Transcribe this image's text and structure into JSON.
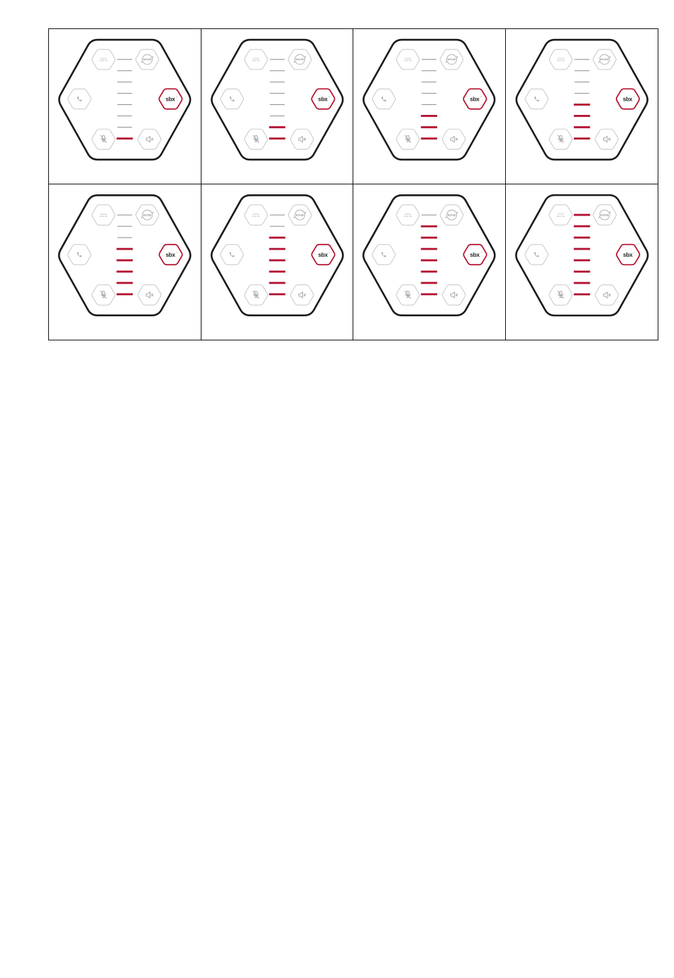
{
  "page": {
    "background": "#ffffff",
    "description": "Grid of eight speakerphone illustrations showing volume level steps 1 to 8"
  },
  "board": {
    "rows": 2,
    "cols": 4,
    "border_color": "#151515"
  },
  "device": {
    "logo_text": "sbx",
    "logo_trademark": "™",
    "noise_button_label": "NOISE",
    "voice_button_line1": "VOICE",
    "voice_button_line2": "PICK UP",
    "volume_bars_total": 8,
    "icons": [
      "voice-pickup-button",
      "noise-cancel-button",
      "phone-icon",
      "sbx-logo",
      "mic-mute-icon",
      "speaker-mute-icon"
    ],
    "colors": {
      "accent_red": "#b3102f",
      "outline_dark": "#1c1c1e",
      "button_outline": "#c7c7c7",
      "icon_gray": "#a3a3a3",
      "bar_inactive": "#969696",
      "logo_text_color": "#262626"
    }
  },
  "panels": [
    {
      "name": "volume-level-1",
      "active_bars": 1
    },
    {
      "name": "volume-level-2",
      "active_bars": 2
    },
    {
      "name": "volume-level-3",
      "active_bars": 3
    },
    {
      "name": "volume-level-4",
      "active_bars": 4
    },
    {
      "name": "volume-level-5",
      "active_bars": 5
    },
    {
      "name": "volume-level-6",
      "active_bars": 6
    },
    {
      "name": "volume-level-7",
      "active_bars": 7
    },
    {
      "name": "volume-level-8",
      "active_bars": 8
    }
  ]
}
